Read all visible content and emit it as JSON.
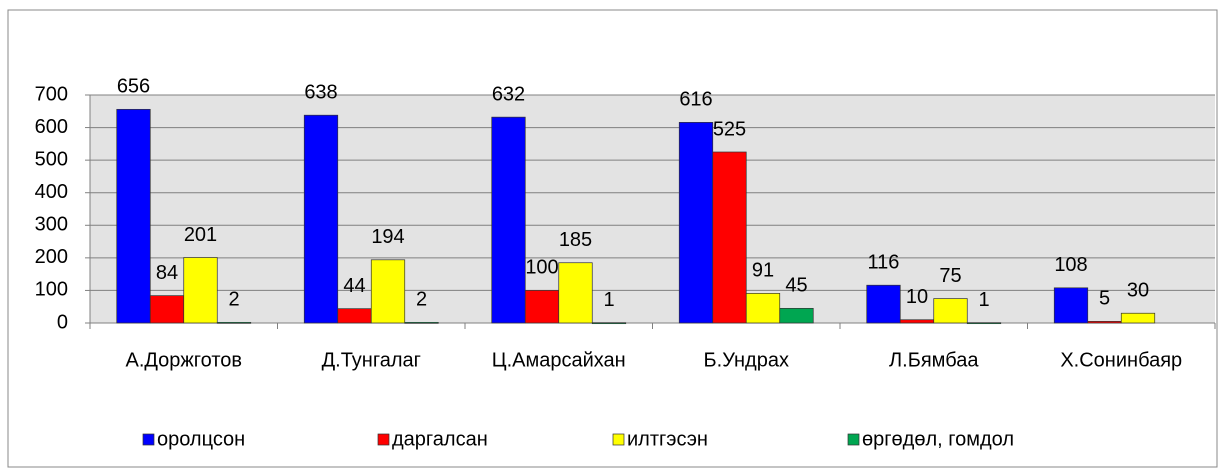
{
  "chart_data": {
    "type": "bar",
    "categories": [
      "А.Доржготов",
      "Д.Тунгалаг",
      "Ц.Амарсайхан",
      "Б.Ундрах",
      "Л.Бямбаа",
      "Х.Сонинбаяр"
    ],
    "series": [
      {
        "name": "оролцсон",
        "color": "#0000ff",
        "values": [
          656,
          638,
          632,
          616,
          116,
          108
        ]
      },
      {
        "name": "даргалсан",
        "color": "#ff0000",
        "values": [
          84,
          44,
          100,
          525,
          10,
          5
        ]
      },
      {
        "name": "илтгэсэн",
        "color": "#ffff00",
        "values": [
          201,
          194,
          185,
          91,
          75,
          30
        ]
      },
      {
        "name": "өргөдөл, гомдол",
        "color": "#00a651",
        "values": [
          2,
          2,
          1,
          45,
          1,
          null
        ]
      }
    ],
    "ylim": [
      0,
      700
    ],
    "yticks": [
      0,
      100,
      200,
      300,
      400,
      500,
      600,
      700
    ],
    "grid": true,
    "legend": "bottom"
  }
}
